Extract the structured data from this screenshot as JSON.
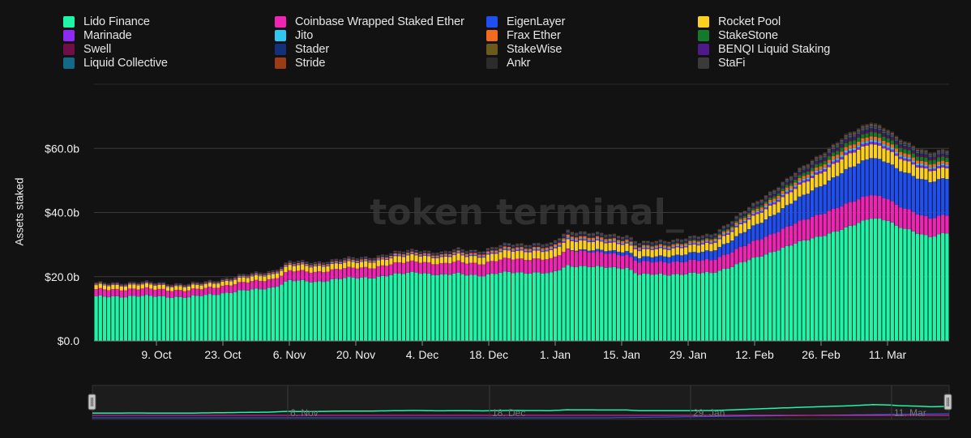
{
  "chart_data": {
    "type": "bar",
    "stacked": true,
    "ylabel": "Assets staked",
    "yticks": [
      "$0.0",
      "$20.0b",
      "$40.0b",
      "$60.0b"
    ],
    "ylim": [
      0,
      80
    ],
    "y_unit": "billion USD",
    "xticks": [
      "9. Oct",
      "23. Oct",
      "6. Nov",
      "20. Nov",
      "4. Dec",
      "18. Dec",
      "1. Jan",
      "15. Jan",
      "29. Jan",
      "12. Feb",
      "26. Feb",
      "11. Mar"
    ],
    "watermark": "token terminal_",
    "legend_position": "top",
    "grid": true,
    "series": [
      {
        "name": "Lido Finance",
        "color": "#1ef5a8"
      },
      {
        "name": "Coinbase Wrapped Staked Ether",
        "color": "#f024b4"
      },
      {
        "name": "EigenLayer",
        "color": "#1f4ff0"
      },
      {
        "name": "Rocket Pool",
        "color": "#fcd01f"
      },
      {
        "name": "Marinade",
        "color": "#8f2af5"
      },
      {
        "name": "Jito",
        "color": "#2ec8f0"
      },
      {
        "name": "Frax Ether",
        "color": "#f26a1f"
      },
      {
        "name": "StakeStone",
        "color": "#137a2c"
      },
      {
        "name": "Swell",
        "color": "#6e1045"
      },
      {
        "name": "Stader",
        "color": "#15307a"
      },
      {
        "name": "StakeWise",
        "color": "#6b5a1e"
      },
      {
        "name": "BENQI Liquid Staking",
        "color": "#4e1a8a"
      },
      {
        "name": "Liquid Collective",
        "color": "#136a86"
      },
      {
        "name": "Stride",
        "color": "#9c3c17"
      },
      {
        "name": "Ankr",
        "color": "#2c2c2c"
      },
      {
        "name": "StaFi",
        "color": "#3a3a3a"
      }
    ],
    "lido_anchors": [
      [
        0,
        13.7
      ],
      [
        10,
        14.0
      ],
      [
        22,
        13.6
      ],
      [
        26,
        14.2
      ],
      [
        32,
        15.2
      ],
      [
        38,
        16.0
      ],
      [
        42,
        16.7
      ],
      [
        46,
        18.8
      ],
      [
        52,
        18.4
      ],
      [
        58,
        19.4
      ],
      [
        66,
        19.8
      ],
      [
        76,
        21.5
      ],
      [
        82,
        20.4
      ],
      [
        86,
        21.0
      ],
      [
        92,
        20.3
      ],
      [
        98,
        21.5
      ],
      [
        108,
        21.0
      ],
      [
        112,
        23.5
      ],
      [
        118,
        23.0
      ],
      [
        126,
        22.8
      ],
      [
        129,
        20.6
      ],
      [
        138,
        20.8
      ],
      [
        146,
        21.2
      ],
      [
        150,
        22.8
      ],
      [
        156,
        25.6
      ],
      [
        162,
        28.5
      ],
      [
        170,
        32.0
      ],
      [
        178,
        35.0
      ],
      [
        184,
        38.5
      ],
      [
        188,
        37.5
      ],
      [
        190,
        35.6
      ],
      [
        194,
        34.2
      ],
      [
        198,
        32.5
      ],
      [
        202,
        33.5
      ]
    ],
    "total_anchors": [
      [
        0,
        18.0
      ],
      [
        10,
        18.4
      ],
      [
        22,
        17.8
      ],
      [
        26,
        18.4
      ],
      [
        32,
        20.0
      ],
      [
        38,
        21.2
      ],
      [
        42,
        22.0
      ],
      [
        46,
        24.8
      ],
      [
        52,
        24.6
      ],
      [
        58,
        25.6
      ],
      [
        66,
        26.4
      ],
      [
        76,
        28.7
      ],
      [
        82,
        27.4
      ],
      [
        86,
        28.8
      ],
      [
        92,
        28.2
      ],
      [
        98,
        30.5
      ],
      [
        108,
        30.2
      ],
      [
        112,
        34.6
      ],
      [
        118,
        33.6
      ],
      [
        126,
        33.0
      ],
      [
        129,
        30.6
      ],
      [
        138,
        31.8
      ],
      [
        146,
        33.2
      ],
      [
        150,
        36.8
      ],
      [
        156,
        42.6
      ],
      [
        162,
        48.5
      ],
      [
        170,
        56.5
      ],
      [
        178,
        64.0
      ],
      [
        184,
        68.6
      ],
      [
        188,
        66.0
      ],
      [
        190,
        63.5
      ],
      [
        194,
        61.0
      ],
      [
        198,
        59.0
      ],
      [
        202,
        59.5
      ]
    ],
    "share_start": [
      1.0,
      0.32,
      0.0,
      0.18,
      0.02,
      0.01,
      0.03,
      0.0,
      0.0,
      0.02,
      0.01,
      0.0,
      0.01,
      0.01,
      0.005,
      0.005
    ],
    "share_end": [
      1.0,
      0.22,
      0.45,
      0.13,
      0.025,
      0.02,
      0.035,
      0.05,
      0.02,
      0.02,
      0.012,
      0.006,
      0.012,
      0.012,
      0.006,
      0.006
    ],
    "bar_count": 203
  },
  "navigator": {
    "labels": [
      "6. Nov",
      "18. Dec",
      "29. Jan",
      "11. Mar"
    ]
  }
}
